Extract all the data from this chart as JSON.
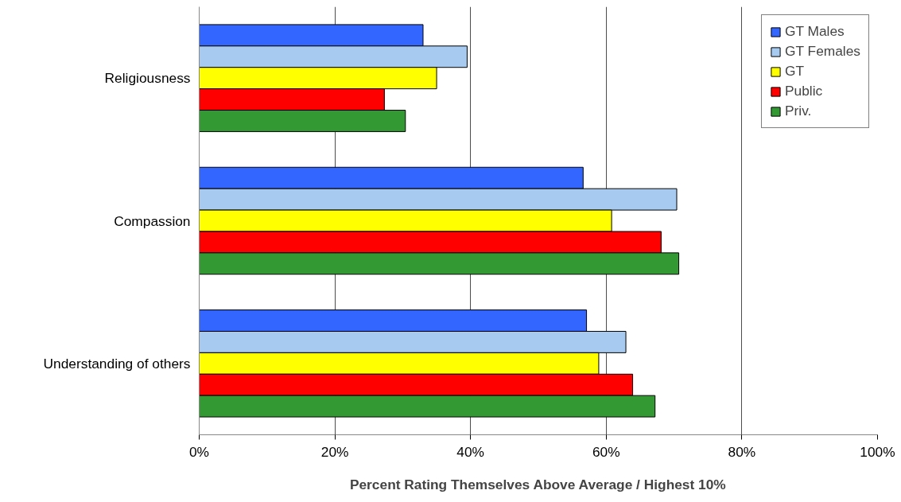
{
  "chart_data": {
    "type": "bar",
    "orientation": "horizontal",
    "xlabel": "Percent Rating Themselves Above Average / Highest 10%",
    "categories": [
      "Religiousness",
      "Compassion",
      "Understanding of others"
    ],
    "series": [
      {
        "name": "GT Males",
        "color": "#3366ff",
        "values": [
          33,
          56.6,
          57.1
        ]
      },
      {
        "name": "GT Females",
        "color": "#a6caf0",
        "values": [
          39.5,
          70.4,
          62.9
        ]
      },
      {
        "name": "GT",
        "color": "#ffff00",
        "values": [
          35,
          60.8,
          58.9
        ]
      },
      {
        "name": "Public",
        "color": "#ff0000",
        "values": [
          27.3,
          68.1,
          63.9
        ]
      },
      {
        "name": "Priv.",
        "color": "#339933",
        "values": [
          30.4,
          70.7,
          67.2
        ]
      }
    ],
    "xlim": [
      0,
      100
    ],
    "xticks": [
      {
        "value": 0,
        "label": "0%"
      },
      {
        "value": 20,
        "label": "20%"
      },
      {
        "value": 40,
        "label": "40%"
      },
      {
        "value": 60,
        "label": "60%"
      },
      {
        "value": 80,
        "label": "80%"
      },
      {
        "value": 100,
        "label": "100%"
      }
    ],
    "grid": "x",
    "legend": "top right"
  }
}
